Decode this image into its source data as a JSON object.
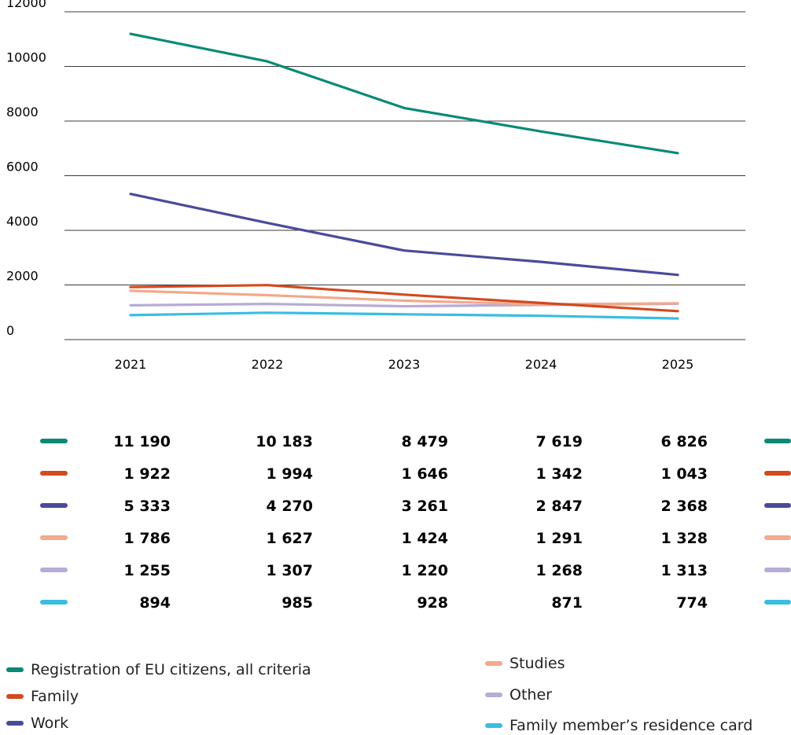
{
  "chart_data": {
    "type": "line",
    "title": "",
    "xlabel": "",
    "ylabel": "",
    "x": [
      "2021",
      "2022",
      "2023",
      "2024",
      "2025"
    ],
    "ylim": [
      0,
      12000
    ],
    "yticks": [
      0,
      2000,
      4000,
      6000,
      8000,
      10000,
      12000
    ],
    "ytick_labels": [
      "0",
      "2000",
      "4000",
      "6000",
      "8000",
      "10000",
      "12000"
    ],
    "grid": "horizontal",
    "series": [
      {
        "name": "Registration of EU citizens, all criteria",
        "color": "#0a8a76",
        "values": [
          11190,
          10183,
          8479,
          7619,
          6826
        ],
        "labels": [
          "11 190",
          "10 183",
          "8 479",
          "7 619",
          "6 826"
        ]
      },
      {
        "name": "Family",
        "color": "#d24a1e",
        "values": [
          1922,
          1994,
          1646,
          1342,
          1043
        ],
        "labels": [
          "1 922",
          "1 994",
          "1 646",
          "1 342",
          "1 043"
        ]
      },
      {
        "name": "Work",
        "color": "#4b4a9a",
        "values": [
          5333,
          4270,
          3261,
          2847,
          2368
        ],
        "labels": [
          "5 333",
          "4 270",
          "3 261",
          "2 847",
          "2 368"
        ]
      },
      {
        "name": "Studies",
        "color": "#f2a98c",
        "values": [
          1786,
          1627,
          1424,
          1291,
          1328
        ],
        "labels": [
          "1 786",
          "1 627",
          "1 424",
          "1 291",
          "1 328"
        ]
      },
      {
        "name": "Other",
        "color": "#b6acd6",
        "values": [
          1255,
          1307,
          1220,
          1268,
          1313
        ],
        "labels": [
          "1 255",
          "1 307",
          "1 220",
          "1 268",
          "1 313"
        ]
      },
      {
        "name": "Family member’s residence card",
        "color": "#3bbde0",
        "values": [
          894,
          985,
          928,
          871,
          774
        ],
        "labels": [
          "894",
          "985",
          "928",
          "871",
          "774"
        ]
      }
    ],
    "legend": {
      "placement": "bottom",
      "left_column": [
        0,
        1,
        2
      ],
      "right_column": [
        3,
        4,
        5
      ]
    }
  }
}
